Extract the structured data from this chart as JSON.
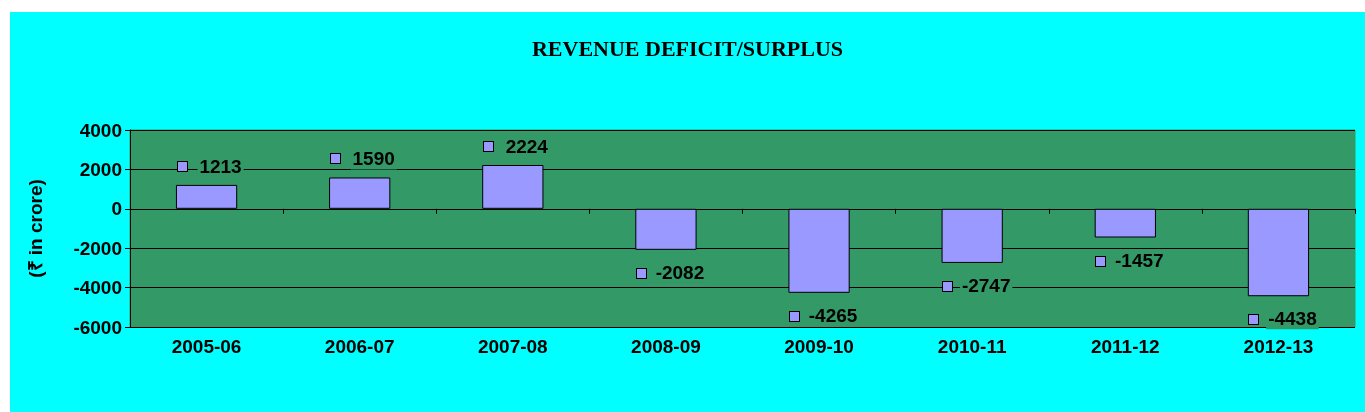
{
  "chart_data": {
    "type": "bar",
    "title": "REVENUE DEFICIT/SURPLUS",
    "ylabel": "(₹ in crore)",
    "categories": [
      "2005-06",
      "2006-07",
      "2007-08",
      "2008-09",
      "2009-10",
      "2010-11",
      "2011-12",
      "2012-13"
    ],
    "values": [
      1213,
      1590,
      2224,
      -2082,
      -4265,
      -2747,
      -1457,
      -4438
    ],
    "color": "#9999ff",
    "ylim": [
      -6000,
      4000
    ],
    "yticks": [
      -6000,
      -4000,
      -2000,
      0,
      2000,
      4000
    ],
    "grid": "y",
    "data_labels": true
  }
}
